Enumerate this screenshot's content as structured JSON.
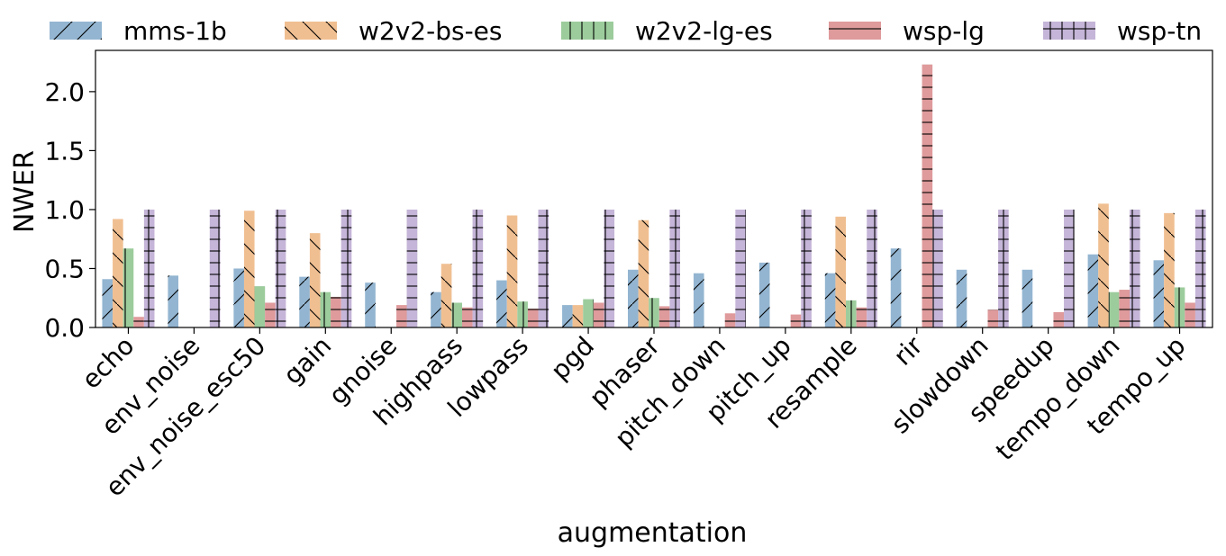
{
  "chart_data": {
    "type": "bar",
    "xlabel": "augmentation",
    "ylabel": "NWER",
    "ylim": [
      0,
      2.35
    ],
    "yticks": [
      0.0,
      0.5,
      1.0,
      1.5,
      2.0
    ],
    "ytick_labels": [
      "0.0",
      "0.5",
      "1.0",
      "1.5",
      "2.0"
    ],
    "legend_position": "top",
    "categories": [
      "echo",
      "env_noise",
      "env_noise_esc50",
      "gain",
      "gnoise",
      "highpass",
      "lowpass",
      "pgd",
      "phaser",
      "pitch_down",
      "pitch_up",
      "resample",
      "rir",
      "slowdown",
      "speedup",
      "tempo_down",
      "tempo_up"
    ],
    "series": [
      {
        "name": "mms-1b",
        "color": "#93b5d1",
        "hatch": "/",
        "values": [
          0.41,
          0.44,
          0.5,
          0.43,
          0.38,
          0.3,
          0.4,
          0.19,
          0.49,
          0.46,
          0.55,
          0.46,
          0.67,
          0.49,
          0.49,
          0.62,
          0.57
        ]
      },
      {
        "name": "w2v2-bs-es",
        "color": "#f0bf91",
        "hatch": "\\",
        "values": [
          0.92,
          null,
          0.99,
          0.8,
          null,
          0.54,
          0.95,
          0.19,
          0.91,
          null,
          null,
          0.94,
          null,
          null,
          null,
          1.05,
          0.97
        ]
      },
      {
        "name": "w2v2-lg-es",
        "color": "#9ccc9c",
        "hatch": "|",
        "values": [
          0.67,
          null,
          0.35,
          0.3,
          null,
          0.21,
          0.22,
          0.24,
          0.25,
          null,
          null,
          0.23,
          null,
          null,
          null,
          0.3,
          0.34
        ]
      },
      {
        "name": "wsp-lg",
        "color": "#df9a9b",
        "hatch": "-",
        "values": [
          0.09,
          null,
          0.21,
          0.26,
          0.19,
          0.17,
          0.16,
          0.21,
          0.18,
          0.12,
          0.11,
          0.17,
          2.23,
          0.15,
          0.13,
          0.32,
          0.21
        ]
      },
      {
        "name": "wsp-tn",
        "color": "#c5b5d8",
        "hatch": "+",
        "values": [
          1.0,
          1.0,
          1.0,
          1.0,
          1.0,
          1.0,
          1.0,
          1.0,
          1.0,
          1.0,
          1.0,
          1.0,
          1.0,
          1.0,
          1.0,
          1.0,
          1.0
        ]
      }
    ]
  }
}
